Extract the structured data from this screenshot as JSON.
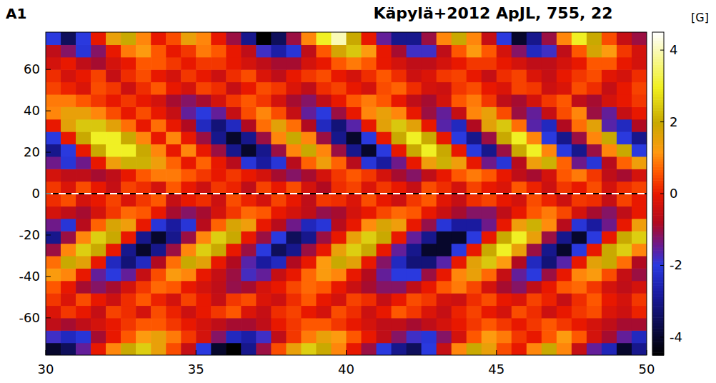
{
  "chart_data": {
    "type": "heatmap",
    "title": "Käpylä+2012 ApJL, 755, 22",
    "annotations": [
      "A1"
    ],
    "xlim": [
      30,
      50
    ],
    "ylim": [
      -78,
      78
    ],
    "xticks": [
      30,
      35,
      40,
      45,
      50
    ],
    "yticks": [
      -60,
      -40,
      -20,
      0,
      20,
      40,
      60
    ],
    "colorbar": {
      "label": "[G]",
      "range": [
        -4.5,
        4.5
      ],
      "ticks": [
        -4,
        -2,
        0,
        2,
        4
      ]
    },
    "x": [
      30.25,
      30.75,
      31.25,
      31.75,
      32.25,
      32.75,
      33.25,
      33.75,
      34.25,
      34.75,
      35.25,
      35.75,
      36.25,
      36.75,
      37.25,
      37.75,
      38.25,
      38.75,
      39.25,
      39.75,
      40.25,
      40.75,
      41.25,
      41.75,
      42.25,
      42.75,
      43.25,
      43.75,
      44.25,
      44.75,
      45.25,
      45.75,
      46.25,
      46.75,
      47.25,
      47.75,
      48.25,
      48.75,
      49.25,
      49.75
    ],
    "y": [
      -75,
      -69,
      -63,
      -57,
      -51,
      -45,
      -39,
      -33,
      -27,
      -21,
      -15,
      -9,
      -3,
      3,
      9,
      15,
      21,
      27,
      33,
      39,
      45,
      51,
      57,
      63,
      69,
      75
    ],
    "z": [
      [
        -4,
        -3.5,
        -1.5,
        0,
        1,
        2,
        2.5,
        1.5,
        0.5,
        -0.5,
        -2,
        -4,
        -4.5,
        -3,
        -1,
        0.5,
        1.5,
        2.5,
        2,
        1,
        0,
        -1,
        -2,
        -3,
        -3.5,
        -2,
        -0.5,
        1,
        2,
        1.5,
        0.5,
        0,
        1,
        2,
        1,
        -0.5,
        -1.5,
        -2.5,
        -4,
        -3
      ],
      [
        -1.8,
        -2.4,
        -2.1,
        -0.9,
        0,
        0.6,
        1.2,
        1.5,
        0.9,
        0.3,
        -0.3,
        -1.2,
        -2.4,
        -2.7,
        -1.8,
        -0.6,
        0.3,
        0.9,
        1.5,
        1.2,
        0.6,
        0,
        -0.6,
        -1.2,
        -1.8,
        -2.1,
        -1.2,
        -0.3,
        0.6,
        1.2,
        0.9,
        0.3,
        0,
        0.6,
        1.2,
        0.6,
        -0.3,
        -0.9,
        -1.5,
        -2.4
      ],
      [
        -0.6,
        -0.9,
        -0.6,
        -0.3,
        0,
        0.3,
        0.6,
        0.6,
        0.3,
        0,
        -0.3,
        -0.6,
        -0.9,
        -0.9,
        -0.6,
        0,
        0.3,
        0.6,
        0.6,
        0.3,
        0,
        -0.3,
        -0.6,
        -0.6,
        -0.9,
        -0.6,
        -0.3,
        0,
        0.3,
        0.6,
        0.3,
        0,
        0.3,
        0.6,
        0.3,
        0,
        -0.3,
        -0.6,
        -0.9,
        -0.9
      ],
      [
        -0.2,
        0.3,
        0,
        -0.5,
        0.4,
        0.2,
        -0.3,
        0.5,
        0.1,
        -0.4,
        0,
        0.3,
        0.6,
        -0.2,
        -0.5,
        0.2,
        0.4,
        0,
        -0.3,
        0.5,
        0.2,
        -0.4,
        0,
        0.6,
        0.3,
        -0.2,
        -0.5,
        0.1,
        0.4,
        0,
        -0.3,
        0.5,
        0.2,
        -0.4,
        0,
        0.3,
        0.5,
        -0.2,
        -0.4,
        0.1
      ],
      [
        0.3,
        -0.2,
        0.5,
        0,
        -0.4,
        0.2,
        0.6,
        0.1,
        -0.3,
        0.4,
        0,
        -0.5,
        0.3,
        0.5,
        -0.2,
        -0.4,
        0.2,
        0.6,
        0,
        -0.3,
        0.4,
        0.2,
        -0.5,
        0,
        0.5,
        0.3,
        -0.3,
        -0.4,
        0.2,
        0.5,
        0,
        -0.2,
        0.4,
        0.1,
        -0.5,
        0.2,
        0.6,
        0,
        -0.3,
        0.3
      ],
      [
        0.6,
        0,
        -0.9,
        -1.2,
        -0.9,
        -0.3,
        0.3,
        0.75,
        0.6,
        0,
        -0.3,
        -0.6,
        -1.05,
        -0.9,
        -0.3,
        0,
        0.45,
        0.75,
        0.6,
        0,
        -0.45,
        -0.9,
        -1.2,
        -1.2,
        -0.6,
        0,
        0.6,
        0.9,
        0.45,
        -0.3,
        -0.9,
        -1.2,
        -0.6,
        0,
        0.6,
        0.75,
        0.3,
        -0.3,
        -0.6,
        -0.3
      ],
      [
        1.25,
        1,
        0,
        -1.5,
        -2,
        -1.5,
        -0.5,
        0.5,
        1.25,
        1,
        0,
        -0.5,
        -1,
        -1.75,
        -1.5,
        -0.5,
        0,
        0.75,
        1.25,
        1,
        0,
        -0.75,
        -1.5,
        -2,
        -2,
        -1,
        0,
        1,
        1.5,
        0.75,
        -0.5,
        -1.5,
        -2,
        -1,
        0,
        1,
        1.25,
        0.5,
        -0.5,
        -1
      ],
      [
        0.8,
        2,
        1.6,
        0,
        -2.4,
        -3.2,
        -2.4,
        -0.8,
        0.8,
        2,
        1.6,
        0,
        -0.8,
        -1.6,
        -2.8,
        -2.4,
        -0.8,
        0,
        1.2,
        2,
        1.6,
        0,
        -1.2,
        -2.4,
        -3.2,
        -3.2,
        -1.6,
        0,
        1.6,
        2.4,
        1.2,
        -0.8,
        -2.4,
        -3.2,
        -1.6,
        0,
        1.6,
        2,
        0.8,
        -0.8
      ],
      [
        -1,
        1,
        2.5,
        2,
        0,
        -3,
        -4,
        -3,
        -1,
        1,
        2.5,
        2,
        0,
        -1,
        -2,
        -3.5,
        -3,
        -1,
        0,
        1.5,
        2.5,
        2,
        0,
        -1.5,
        -3,
        -4,
        -4,
        -2,
        0,
        2,
        3,
        1.5,
        -1,
        -3,
        -4,
        -2,
        0,
        2,
        2.5,
        1
      ],
      [
        -3,
        -1,
        1,
        2.5,
        2,
        0,
        -3,
        -4,
        -3,
        -1,
        1,
        2.5,
        2,
        0,
        -1,
        -2,
        -3.5,
        -3,
        -1,
        0,
        1.5,
        2.5,
        2,
        0,
        -1.5,
        -3,
        -4,
        -4,
        -2,
        0,
        2,
        3,
        1.5,
        -1,
        -3,
        -4,
        -2,
        0,
        2,
        2.5
      ],
      [
        -1.4,
        -2.1,
        -0.7,
        0.7,
        1.75,
        1.4,
        0,
        -2.1,
        -2.8,
        -2.1,
        -0.7,
        0.7,
        1.75,
        1.4,
        0,
        -0.7,
        -1.4,
        -2.45,
        -2.1,
        -0.7,
        0,
        1.05,
        1.75,
        1.4,
        0,
        -1.05,
        -2.1,
        -2.8,
        -2.8,
        -1.4,
        0,
        1.4,
        2.1,
        1.05,
        -0.7,
        -2.1,
        -2.8,
        -1.4,
        0,
        1.4
      ],
      [
        -0.3,
        -0.6,
        -0.9,
        -0.3,
        0.3,
        0.75,
        0.6,
        0,
        -0.9,
        -1.2,
        -0.9,
        -0.3,
        0.3,
        0.75,
        0.6,
        0,
        -0.3,
        -0.6,
        -1.05,
        -0.9,
        -0.3,
        0,
        0.45,
        0.75,
        0.6,
        0,
        -0.45,
        -0.9,
        -1.2,
        -1.2,
        -0.6,
        0,
        0.6,
        0.9,
        0.45,
        -0.3,
        -0.9,
        -1.2,
        -0.6,
        0
      ],
      [
        0.2,
        0.5,
        -0.3,
        0,
        0.4,
        -0.2,
        0.3,
        0.6,
        -0.5,
        0,
        0.2,
        -0.4,
        0.5,
        0.1,
        -0.3,
        0.4,
        0,
        -0.6,
        0.3,
        0.2,
        -0.2,
        0.5,
        0,
        -0.4,
        0.3,
        0.6,
        -0.1,
        -0.5,
        0.2,
        0.4,
        0,
        -0.3,
        0.5,
        0.1,
        -0.4,
        0.3,
        0.2,
        -0.5,
        0.4,
        0
      ],
      [
        0.3,
        -0.2,
        0.5,
        0,
        -0.5,
        0.4,
        0.2,
        -0.3,
        0.6,
        0,
        -0.4,
        0.3,
        0.1,
        -0.6,
        0.4,
        0,
        0.5,
        -0.3,
        -0.8,
        0.2,
        0.4,
        -0.2,
        0.3,
        0,
        -0.5,
        0.5,
        0.2,
        -0.3,
        0.4,
        0,
        -0.2,
        0.6,
        0.1,
        -0.4,
        0.3,
        0,
        0.5,
        -0.3,
        0.2,
        0.4
      ],
      [
        -0.3,
        -0.6,
        -0.6,
        -0.9,
        -0.6,
        0,
        0.6,
        0.9,
        0.9,
        0.6,
        0.3,
        0,
        0.3,
        0,
        -0.3,
        -0.9,
        -1.2,
        -0.9,
        -0.3,
        0.3,
        0.6,
        0.3,
        -0.3,
        -0.9,
        -1.2,
        -0.6,
        0,
        0.6,
        0.9,
        0.6,
        0,
        -0.6,
        -0.9,
        -0.3,
        0.6,
        0.9,
        0.3,
        -0.6,
        -0.9,
        -0.3
      ],
      [
        -1.4,
        -2.1,
        -1.4,
        0,
        1.4,
        2.1,
        2.1,
        1.4,
        0.7,
        0,
        0.7,
        0,
        -0.7,
        -2.1,
        -2.8,
        -2.1,
        -0.7,
        0.7,
        1.4,
        0.7,
        -0.7,
        -2.1,
        -2.8,
        -1.4,
        0,
        1.4,
        2.1,
        1.4,
        0,
        -1.4,
        -2.1,
        -0.7,
        1.4,
        2.1,
        0.7,
        -1.4,
        -2.1,
        -0.7,
        0.7,
        1.4
      ],
      [
        -3,
        -2,
        0,
        2,
        3,
        3,
        2,
        1,
        0,
        1,
        0,
        -1,
        -3,
        -4,
        -3,
        -1,
        1,
        2,
        1,
        -1,
        -3,
        -4,
        -2,
        0,
        2,
        3,
        2,
        0,
        -2,
        -3,
        -1,
        2,
        3,
        1,
        -2,
        -3,
        -1,
        1,
        2,
        -2
      ],
      [
        -2,
        0,
        2,
        3,
        3,
        2,
        1,
        0,
        1,
        0,
        -1,
        -3,
        -4,
        -3,
        -1,
        1,
        2,
        1,
        -1,
        -3,
        -4,
        -2,
        0,
        2,
        3,
        2,
        0,
        -2,
        -3,
        -1,
        2,
        3,
        1,
        -2,
        -3,
        -1,
        1,
        2,
        -2,
        -3
      ],
      [
        0,
        1.6,
        2.4,
        2.4,
        1.6,
        0.8,
        0,
        0.8,
        0,
        -0.8,
        -2.4,
        -3.2,
        -2.4,
        -0.8,
        0.8,
        1.6,
        0.8,
        -0.8,
        -2.4,
        -3.2,
        -1.6,
        0,
        1.6,
        2.4,
        1.6,
        0,
        -1.6,
        -2.4,
        -0.8,
        1.6,
        2.4,
        0.8,
        -1.6,
        -2.4,
        -0.8,
        0.8,
        1.6,
        -1.6,
        -2.4,
        -0.8
      ],
      [
        1,
        1.5,
        1.5,
        1,
        0.5,
        0,
        0.5,
        0,
        -0.5,
        -1.5,
        -2,
        -1.5,
        -0.5,
        0.5,
        1,
        0.5,
        -0.5,
        -1.5,
        -2,
        -1,
        0,
        1,
        1.5,
        1,
        0,
        -1,
        -1.5,
        -0.5,
        1,
        1.5,
        0.5,
        -1,
        -1.5,
        -0.5,
        0.5,
        1,
        -1,
        -1.5,
        -0.5,
        0
      ],
      [
        0.9,
        0.9,
        0.6,
        0.3,
        0,
        0.3,
        0,
        -0.3,
        -0.9,
        -1.2,
        -0.9,
        -0.3,
        0.3,
        0.6,
        0.3,
        -0.3,
        -0.9,
        -1.2,
        -0.6,
        0,
        0.6,
        0.9,
        0.6,
        0,
        -0.6,
        -0.9,
        -0.3,
        0.6,
        0.9,
        0.3,
        -0.6,
        -0.9,
        -0.3,
        0.3,
        0.6,
        -0.6,
        -0.9,
        -0.3,
        0,
        0.3
      ],
      [
        0.4,
        0.1,
        -0.2,
        0.5,
        0.3,
        -0.4,
        0.2,
        0.6,
        0,
        -0.3,
        0.4,
        0.2,
        -0.5,
        0,
        0.5,
        0.3,
        -0.2,
        -0.6,
        0.2,
        0.4,
        0,
        -0.3,
        0.5,
        0.7,
        0.2,
        -0.3,
        -0.4,
        0.3,
        0.5,
        0,
        -0.2,
        0.4,
        0.3,
        -0.4,
        -0.2,
        0.5,
        0.2,
        -0.5,
        0,
        0.4
      ],
      [
        0.2,
        -0.3,
        0,
        0.4,
        -0.5,
        0.2,
        0.5,
        0,
        -0.3,
        0.3,
        0,
        -0.4,
        0.2,
        0.5,
        -0.2,
        -0.6,
        0,
        0.3,
        0.5,
        0,
        -0.3,
        0.2,
        0.6,
        0.2,
        -0.4,
        -0.2,
        0.3,
        0.4,
        0,
        -0.5,
        0.2,
        0.4,
        -0.2,
        -0.5,
        0,
        0.3,
        0.5,
        -0.1,
        -0.3,
        0.2
      ],
      [
        -0.3,
        0,
        -0.6,
        -0.9,
        -0.3,
        0,
        0.6,
        0.6,
        0.3,
        0,
        0.3,
        0.3,
        0,
        -0.3,
        -0.6,
        -0.9,
        -0.9,
        -0.3,
        0,
        0.6,
        0.9,
        0.6,
        0,
        -0.3,
        -0.6,
        -0.6,
        -0.3,
        0,
        0.3,
        0.3,
        0,
        -0.3,
        -0.6,
        -0.6,
        -0.3,
        0,
        0.6,
        0.6,
        0,
        -0.3
      ],
      [
        -0.6,
        -1.2,
        -2.1,
        -1.2,
        0,
        0.9,
        1.2,
        0.6,
        0,
        0.3,
        0.9,
        0.6,
        0,
        -0.6,
        -1.8,
        -2.7,
        -2.1,
        -0.6,
        0.6,
        1.8,
        2.4,
        1.2,
        0,
        -0.9,
        -1.8,
        -1.8,
        -0.6,
        0.6,
        1.2,
        0.6,
        -0.3,
        -1.2,
        -2.4,
        -1.8,
        -0.6,
        0.6,
        1.8,
        1.2,
        0.3,
        -0.3
      ],
      [
        -2,
        -3.5,
        -2,
        0,
        1.5,
        2,
        1,
        0,
        0.5,
        1.5,
        1,
        0,
        -1,
        -3,
        -4.5,
        -3.5,
        -1,
        1,
        3,
        4,
        2,
        0,
        -1.5,
        -3,
        -3,
        -1,
        1,
        2,
        1,
        -0.5,
        -2,
        -4,
        -3,
        -1,
        1,
        3,
        2,
        0.5,
        -0.5,
        -1
      ]
    ]
  }
}
